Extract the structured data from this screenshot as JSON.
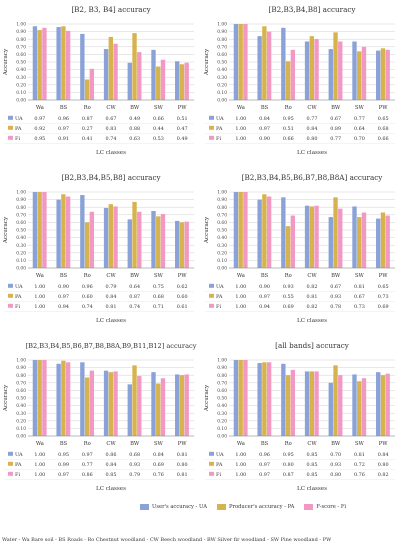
{
  "legend": {
    "ua": "User's accuracy - UA",
    "pa": "Producer's accuracy - PA",
    "fi": "F-score - Fi"
  },
  "abbreviations": "Water - Wa Bare soil - BS Roads - Ro Chestnut woodland - CW Beech woodland - BW Silver fir woodland - SW Pine woodland - PW",
  "colors": {
    "ua": "#8aa2d8",
    "pa": "#d6b34c",
    "fi": "#f199c3",
    "ua_pa_overlap": "#5ec4c4",
    "grid": "#d0d0d0",
    "axis": "#888888"
  },
  "chart_data": [
    {
      "type": "bar",
      "title": "[B2, B3, B4] accuracy",
      "xlabel": "LC classes",
      "ylabel": "Accuracy",
      "ylim": [
        0,
        1
      ],
      "yticks": [
        "0.00",
        "0.10",
        "0.20",
        "0.30",
        "0.40",
        "0.50",
        "0.60",
        "0.70",
        "0.80",
        "0.90",
        "1.00"
      ],
      "categories": [
        "Wa",
        "BS",
        "Ro",
        "CW",
        "BW",
        "SW",
        "PW"
      ],
      "series": [
        {
          "name": "UA",
          "values": [
            0.97,
            0.96,
            0.87,
            0.67,
            0.49,
            0.66,
            0.51
          ]
        },
        {
          "name": "PA",
          "values": [
            0.92,
            0.97,
            0.27,
            0.83,
            0.88,
            0.44,
            0.47
          ]
        },
        {
          "name": "Fi",
          "values": [
            0.95,
            0.91,
            0.41,
            0.74,
            0.63,
            0.53,
            0.49
          ]
        }
      ],
      "table_values": [
        [
          "0.97",
          "0.96",
          "0.87",
          "0.67",
          "0.49",
          "0.66",
          "0.51"
        ],
        [
          "0.92",
          "0.97",
          "0.27",
          "0.83",
          "0.88",
          "0.44",
          "0.47"
        ],
        [
          "0.95",
          "0.91",
          "0.41",
          "0.74",
          "0.63",
          "0.53",
          "0.49"
        ]
      ]
    },
    {
      "type": "bar",
      "title": "[B2,B3,B4,B8] accuracy",
      "xlabel": "LC classes",
      "ylabel": "Accuracy",
      "ylim": [
        0,
        1
      ],
      "yticks": [
        "0.00",
        "0.10",
        "0.20",
        "0.30",
        "0.40",
        "0.50",
        "0.60",
        "0.70",
        "0.80",
        "0.90",
        "1.00"
      ],
      "categories": [
        "Wa",
        "BS",
        "Ro",
        "CW",
        "BW",
        "SW",
        "PW"
      ],
      "series": [
        {
          "name": "UA",
          "values": [
            1.0,
            0.84,
            0.95,
            0.77,
            0.67,
            0.77,
            0.65
          ]
        },
        {
          "name": "PA",
          "values": [
            1.0,
            0.97,
            0.51,
            0.84,
            0.89,
            0.64,
            0.68
          ]
        },
        {
          "name": "Fi",
          "values": [
            1.0,
            0.9,
            0.66,
            0.8,
            0.77,
            0.7,
            0.66
          ]
        }
      ],
      "table_values": [
        [
          "1.00",
          "0.84",
          "0.95",
          "0.77",
          "0.67",
          "0.77",
          "0.65"
        ],
        [
          "1.00",
          "0.97",
          "0.51",
          "0.84",
          "0.89",
          "0.64",
          "0.68"
        ],
        [
          "1.00",
          "0.90",
          "0.66",
          "0.80",
          "0.77",
          "0.70",
          "0.66"
        ]
      ]
    },
    {
      "type": "bar",
      "title": "[B2,B3,B4,B5,B8] accuracy",
      "xlabel": "LC classes",
      "ylabel": "Accuracy",
      "ylim": [
        0,
        1
      ],
      "yticks": [
        "0.00",
        "0.10",
        "0.20",
        "0.30",
        "0.40",
        "0.50",
        "0.60",
        "0.70",
        "0.80",
        "0.90",
        "1.00"
      ],
      "categories": [
        "Wa",
        "BS",
        "Ro",
        "CW",
        "BW",
        "SW",
        "PW"
      ],
      "series": [
        {
          "name": "UA",
          "values": [
            1.0,
            0.9,
            0.96,
            0.79,
            0.64,
            0.75,
            0.62
          ]
        },
        {
          "name": "PA",
          "values": [
            1.0,
            0.97,
            0.6,
            0.84,
            0.87,
            0.68,
            0.6
          ]
        },
        {
          "name": "Fi",
          "values": [
            1.0,
            0.94,
            0.74,
            0.81,
            0.74,
            0.71,
            0.61
          ]
        }
      ],
      "table_values": [
        [
          "1.00",
          "0.90",
          "0.96",
          "0.79",
          "0.64",
          "0.75",
          "0.62"
        ],
        [
          "1.00",
          "0.97",
          "0.60",
          "0.84",
          "0.87",
          "0.68",
          "0.60"
        ],
        [
          "1.00",
          "0.94",
          "0.74",
          "0.81",
          "0.74",
          "0.71",
          "0.61"
        ]
      ]
    },
    {
      "type": "bar",
      "title": "[B2,B3,B4,B5,B6,B7,B8,B8A] accuracy",
      "xlabel": "LC classes",
      "ylabel": "Accuracy",
      "ylim": [
        0,
        1
      ],
      "yticks": [
        "0.00",
        "0.10",
        "0.20",
        "0.30",
        "0.40",
        "0.50",
        "0.60",
        "0.70",
        "0.80",
        "0.90",
        "1.00"
      ],
      "categories": [
        "Wa",
        "BS",
        "Ro",
        "CW",
        "BW",
        "SW",
        "PW"
      ],
      "series": [
        {
          "name": "UA",
          "values": [
            1.0,
            0.9,
            0.93,
            0.82,
            0.67,
            0.81,
            0.65
          ]
        },
        {
          "name": "PA",
          "values": [
            1.0,
            0.97,
            0.55,
            0.81,
            0.93,
            0.67,
            0.73
          ]
        },
        {
          "name": "Fi",
          "values": [
            1.0,
            0.94,
            0.69,
            0.82,
            0.78,
            0.73,
            0.69
          ]
        }
      ],
      "table_values": [
        [
          "1.00",
          "0.90",
          "0.93",
          "0.82",
          "0.67",
          "0.81",
          "0.65"
        ],
        [
          "1.00",
          "0.97",
          "0.55",
          "0.81",
          "0.93",
          "0.67",
          "0.73"
        ],
        [
          "1.00",
          "0.94",
          "0.69",
          "0.82",
          "0.78",
          "0.73",
          "0.69"
        ]
      ]
    },
    {
      "type": "bar",
      "title": "[B2,B3,B4,B5,B6,B7,B8,B8A,B9,B11,B12] accuracy",
      "xlabel": "LC classes",
      "ylabel": "Accuracy",
      "ylim": [
        0,
        1
      ],
      "yticks": [
        "0.00",
        "0.10",
        "0.20",
        "0.30",
        "0.40",
        "0.50",
        "0.60",
        "0.70",
        "0.80",
        "0.90",
        "1.00"
      ],
      "categories": [
        "Wa",
        "BS",
        "Ro",
        "CW",
        "BW",
        "SW",
        "PW"
      ],
      "series": [
        {
          "name": "UA",
          "values": [
            1.0,
            0.95,
            0.97,
            0.86,
            0.68,
            0.84,
            0.81
          ]
        },
        {
          "name": "PA",
          "values": [
            1.0,
            0.99,
            0.77,
            0.84,
            0.93,
            0.69,
            0.8
          ]
        },
        {
          "name": "Fi",
          "values": [
            1.0,
            0.97,
            0.86,
            0.85,
            0.79,
            0.76,
            0.81
          ]
        }
      ],
      "table_values": [
        [
          "1.00",
          "0.95",
          "0.97",
          "0.86",
          "0.68",
          "0.84",
          "0.81"
        ],
        [
          "1.00",
          "0.99",
          "0.77",
          "0.84",
          "0.93",
          "0.69",
          "0.80"
        ],
        [
          "1.00",
          "0.97",
          "0.86",
          "0.85",
          "0.79",
          "0.76",
          "0.81"
        ]
      ]
    },
    {
      "type": "bar",
      "title": "[all bands] accuracy",
      "xlabel": "LC classes",
      "ylabel": "Accuracy",
      "ylim": [
        0,
        1
      ],
      "yticks": [
        "0.00",
        "0.10",
        "0.20",
        "0.30",
        "0.40",
        "0.50",
        "0.60",
        "0.70",
        "0.80",
        "0.90",
        "1.00"
      ],
      "categories": [
        "Wa",
        "BS",
        "Ro",
        "CW",
        "BW",
        "SW",
        "PW"
      ],
      "series": [
        {
          "name": "UA",
          "values": [
            1.0,
            0.96,
            0.95,
            0.85,
            0.7,
            0.81,
            0.84
          ]
        },
        {
          "name": "PA",
          "values": [
            1.0,
            0.97,
            0.8,
            0.85,
            0.93,
            0.72,
            0.8
          ]
        },
        {
          "name": "Fi",
          "values": [
            1.0,
            0.97,
            0.87,
            0.85,
            0.8,
            0.76,
            0.82
          ]
        }
      ],
      "table_values": [
        [
          "1.00",
          "0.96",
          "0.95",
          "0.85",
          "0.70",
          "0.81",
          "0.84"
        ],
        [
          "1.00",
          "0.97",
          "0.80",
          "0.85",
          "0.93",
          "0.72",
          "0.80"
        ],
        [
          "1.00",
          "0.97",
          "0.87",
          "0.85",
          "0.80",
          "0.76",
          "0.82"
        ]
      ]
    }
  ]
}
